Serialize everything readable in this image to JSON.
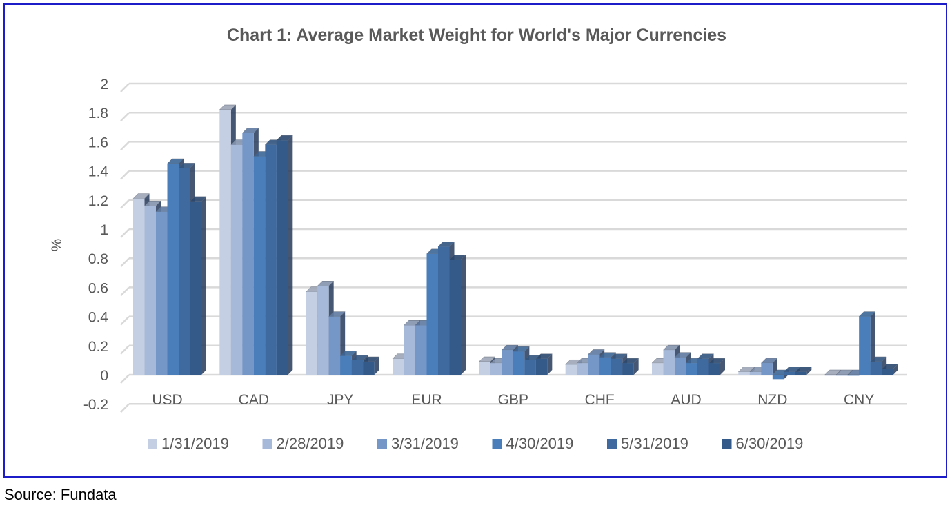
{
  "source": "Source: Fundata",
  "chart_data": {
    "type": "bar",
    "title": "Chart 1: Average Market Weight for World's Major Currencies",
    "xlabel": "",
    "ylabel": "%",
    "ylim": [
      -0.2,
      2
    ],
    "yticks": [
      "2",
      "1.8",
      "1.6",
      "1.4",
      "1.2",
      "1",
      "0.8",
      "0.6",
      "0.4",
      "0.2",
      "0",
      "-0.2"
    ],
    "grid": true,
    "legend_position": "bottom",
    "categories": [
      "USD",
      "CAD",
      "JPY",
      "EUR",
      "GBP",
      "CHF",
      "AUD",
      "NZD",
      "CNY"
    ],
    "series": [
      {
        "name": "1/31/2019",
        "color": "#c5cfe3",
        "values": [
          1.21,
          1.82,
          0.57,
          0.11,
          0.09,
          0.07,
          0.08,
          0.02,
          0.0
        ]
      },
      {
        "name": "2/28/2019",
        "color": "#a6b9d9",
        "values": [
          1.16,
          1.58,
          0.61,
          0.34,
          0.08,
          0.08,
          0.17,
          0.02,
          0.0
        ]
      },
      {
        "name": "3/31/2019",
        "color": "#7597c8",
        "values": [
          1.12,
          1.66,
          0.4,
          0.34,
          0.17,
          0.14,
          0.12,
          0.08,
          0.0
        ]
      },
      {
        "name": "4/30/2019",
        "color": "#4a7ebb",
        "values": [
          1.45,
          1.5,
          0.13,
          0.83,
          0.16,
          0.12,
          0.08,
          -0.03,
          0.4
        ]
      },
      {
        "name": "5/31/2019",
        "color": "#3f6aa0",
        "values": [
          1.42,
          1.58,
          0.1,
          0.88,
          0.1,
          0.11,
          0.11,
          0.02,
          0.09
        ]
      },
      {
        "name": "6/30/2019",
        "color": "#345a8a",
        "values": [
          1.19,
          1.61,
          0.09,
          0.79,
          0.11,
          0.08,
          0.08,
          0.02,
          0.04
        ]
      }
    ]
  }
}
